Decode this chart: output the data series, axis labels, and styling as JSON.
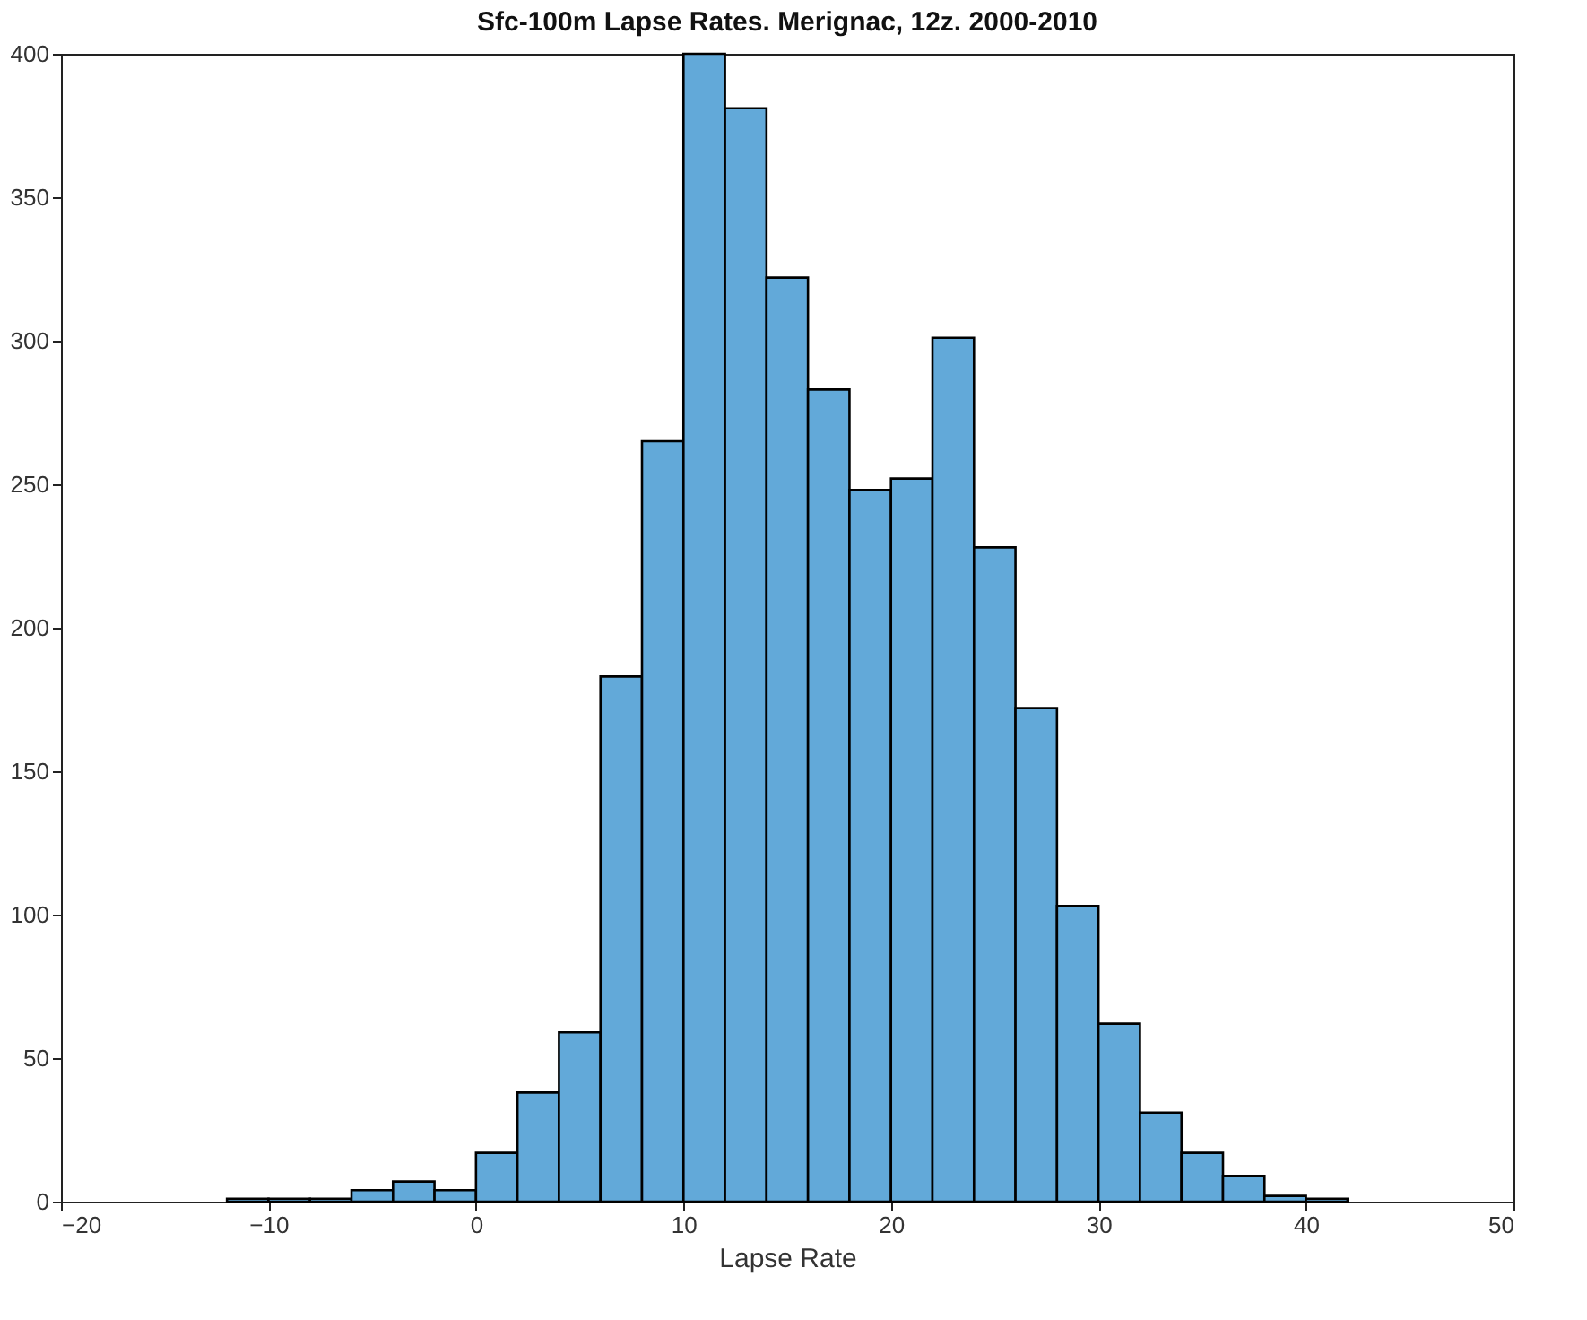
{
  "chart_data": {
    "type": "histogram",
    "title": "Sfc-100m Lapse Rates. Merignac, 12z. 2000-2010",
    "xlabel": "Lapse Rate",
    "bins": [
      -12,
      -10,
      -8,
      -6,
      -4,
      -2,
      0,
      2,
      4,
      6,
      8,
      10,
      12,
      14,
      16,
      18,
      20,
      22,
      24,
      26,
      28,
      30,
      32,
      34,
      36,
      38,
      40,
      42
    ],
    "values": [
      1,
      1,
      1,
      4,
      7,
      4,
      17,
      38,
      59,
      183,
      265,
      400,
      381,
      322,
      283,
      248,
      252,
      301,
      228,
      172,
      103,
      62,
      31,
      17,
      9,
      2,
      1
    ],
    "color": "#62a9d9",
    "xlim": [
      -20,
      50
    ],
    "xticks": [
      -20,
      -10,
      0,
      10,
      20,
      30,
      40,
      50
    ],
    "ylim": [
      0,
      400
    ],
    "yticks": [
      0,
      50,
      100,
      150,
      200,
      250,
      300,
      350,
      400
    ],
    "grid": false
  }
}
